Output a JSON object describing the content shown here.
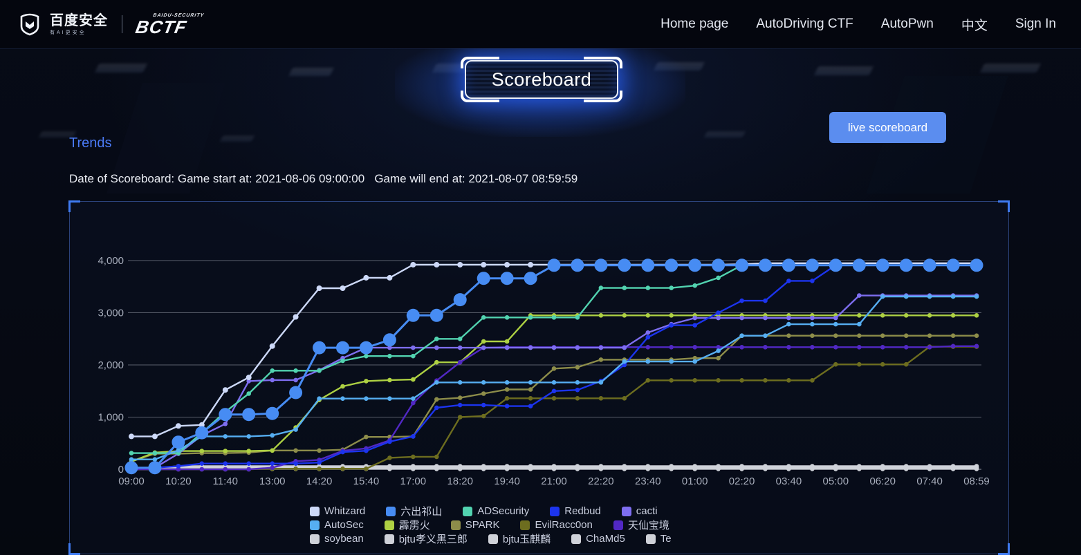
{
  "header": {
    "brand": {
      "logo_text": "百度安全",
      "logo_subtext": "有AI更安全",
      "ctf_logo_super": "BAIDU-SECURITY",
      "ctf_logo": "BCTF"
    },
    "nav": {
      "items": [
        {
          "label": "Home page"
        },
        {
          "label": "AutoDriving CTF"
        },
        {
          "label": "AutoPwn"
        },
        {
          "label": "中文"
        },
        {
          "label": "Sign In"
        }
      ]
    }
  },
  "page": {
    "title": "Scoreboard",
    "live_button": "live scoreboard",
    "section_heading": "Trends",
    "date_line": "Date of Scoreboard: Game start at: 2021-08-06 09:00:00   Game will end at: 2021-08-07 08:59:59"
  },
  "colors": {
    "accent": "#4a7af5",
    "button": "#5b8def",
    "panel_border": "#3b5fae",
    "corner_bracket": "#3f7bf2",
    "axis_text": "#a8aebc",
    "grid_line": "#c3c8d4",
    "legend_text": "#c9cede"
  },
  "chart_data": {
    "type": "line",
    "title": "Trends",
    "xlabel": "",
    "ylabel": "",
    "ylim": [
      0,
      4000
    ],
    "y_ticks": [
      0,
      1000,
      2000,
      3000,
      4000
    ],
    "y_tick_labels": [
      "0",
      "1,000",
      "2,000",
      "3,000",
      "4,000"
    ],
    "x_tick_labels": [
      "09:00",
      "10:20",
      "11:40",
      "13:00",
      "14:20",
      "15:40",
      "17:00",
      "18:20",
      "19:40",
      "21:00",
      "22:20",
      "23:40",
      "01:00",
      "02:20",
      "03:40",
      "05:00",
      "06:20",
      "07:40",
      "08:59"
    ],
    "minutes_per_point": 40,
    "points_per_tick": 2,
    "grid": "horizontal",
    "legend_position": "bottom",
    "legend_rows": 3,
    "draw_order": [
      10,
      11,
      12,
      13,
      14,
      8,
      7,
      6,
      9,
      4,
      2,
      3,
      5,
      0,
      1
    ],
    "series": [
      {
        "name": "Whitzard",
        "color": "#cdd9f8",
        "marker": "small",
        "values": [
          630,
          630,
          830,
          850,
          1520,
          1760,
          2360,
          2920,
          3470,
          3470,
          3670,
          3670,
          3920,
          3920,
          3920,
          3920,
          3920,
          3920,
          3920,
          3920,
          3920,
          3920,
          3920,
          3920,
          3920,
          3920,
          3930,
          3950,
          3950,
          3950,
          3950,
          3950,
          3950,
          3950,
          3950,
          3950,
          3950
        ]
      },
      {
        "name": "六出祁山",
        "color": "#478cf3",
        "marker": "big",
        "values": [
          30,
          30,
          520,
          700,
          1050,
          1050,
          1070,
          1470,
          2330,
          2330,
          2330,
          2480,
          2950,
          2950,
          3250,
          3660,
          3660,
          3660,
          3910,
          3910,
          3910,
          3910,
          3910,
          3910,
          3910,
          3910,
          3910,
          3910,
          3910,
          3910,
          3910,
          3910,
          3910,
          3910,
          3910,
          3910,
          3910
        ]
      },
      {
        "name": "ADSecurity",
        "color": "#52d3b0",
        "marker": "small",
        "values": [
          310,
          310,
          310,
          700,
          1100,
          1450,
          1890,
          1890,
          1890,
          2080,
          2170,
          2170,
          2170,
          2500,
          2500,
          2910,
          2910,
          2910,
          2910,
          2910,
          3475,
          3475,
          3475,
          3475,
          3520,
          3670,
          3910,
          3910,
          3910,
          3910,
          3910,
          3910,
          3910,
          3910,
          3910,
          3910,
          3910
        ]
      },
      {
        "name": "Redbud",
        "color": "#1c34ee",
        "marker": "small",
        "values": [
          30,
          30,
          60,
          110,
          110,
          110,
          110,
          110,
          130,
          330,
          355,
          530,
          630,
          1180,
          1230,
          1230,
          1210,
          1210,
          1500,
          1520,
          1690,
          2000,
          2530,
          2760,
          2760,
          3000,
          3230,
          3230,
          3610,
          3610,
          3910,
          3910,
          3910,
          3910,
          3910,
          3910,
          3910
        ]
      },
      {
        "name": "cacti",
        "color": "#7e6ef0",
        "marker": "small",
        "values": [
          30,
          30,
          300,
          650,
          870,
          1690,
          1710,
          1710,
          1900,
          2130,
          2330,
          2330,
          2330,
          2330,
          2330,
          2330,
          2330,
          2330,
          2330,
          2330,
          2330,
          2330,
          2620,
          2780,
          2900,
          2900,
          2900,
          2900,
          2900,
          2900,
          2900,
          3330,
          3330,
          3330,
          3330,
          3330,
          3330
        ]
      },
      {
        "name": "AutoSec",
        "color": "#56aef2",
        "marker": "small",
        "values": [
          190,
          190,
          365,
          630,
          630,
          630,
          650,
          760,
          1355,
          1355,
          1355,
          1355,
          1355,
          1665,
          1665,
          1665,
          1665,
          1665,
          1665,
          1665,
          1665,
          2065,
          2065,
          2065,
          2065,
          2270,
          2560,
          2560,
          2780,
          2780,
          2780,
          2780,
          3310,
          3310,
          3310,
          3310,
          3310
        ]
      },
      {
        "name": "霹雳火",
        "color": "#aed143",
        "marker": "small",
        "values": [
          150,
          320,
          350,
          350,
          350,
          350,
          360,
          800,
          1330,
          1590,
          1690,
          1710,
          1720,
          2050,
          2050,
          2450,
          2450,
          2950,
          2950,
          2950,
          2950,
          2950,
          2950,
          2950,
          2950,
          2950,
          2950,
          2950,
          2950,
          2950,
          2950,
          2950,
          2950,
          2950,
          2950,
          2950,
          2950
        ]
      },
      {
        "name": "SPARK",
        "color": "#8d8d4a",
        "marker": "small",
        "values": [
          150,
          300,
          300,
          310,
          310,
          320,
          360,
          360,
          360,
          375,
          620,
          620,
          630,
          1340,
          1370,
          1450,
          1530,
          1530,
          1930,
          1955,
          2100,
          2100,
          2100,
          2100,
          2130,
          2130,
          2560,
          2560,
          2560,
          2560,
          2560,
          2560,
          2560,
          2560,
          2560,
          2560,
          2560
        ]
      },
      {
        "name": "EvilRacc0on",
        "color": "#6d6d1f",
        "marker": "small",
        "values": [
          0,
          0,
          0,
          0,
          0,
          0,
          10,
          10,
          10,
          10,
          10,
          220,
          240,
          240,
          1000,
          1020,
          1360,
          1360,
          1360,
          1360,
          1360,
          1360,
          1705,
          1705,
          1705,
          1705,
          1705,
          1705,
          1705,
          1705,
          2010,
          2010,
          2010,
          2010,
          2350,
          2350,
          2350
        ]
      },
      {
        "name": "天仙宝境",
        "color": "#5128c4",
        "marker": "small",
        "values": [
          0,
          0,
          0,
          0,
          0,
          0,
          30,
          155,
          180,
          355,
          400,
          555,
          1270,
          1700,
          2050,
          2330,
          2340,
          2340,
          2340,
          2340,
          2340,
          2340,
          2340,
          2340,
          2340,
          2340,
          2340,
          2340,
          2340,
          2340,
          2340,
          2340,
          2340,
          2340,
          2340,
          2360,
          2360
        ]
      },
      {
        "name": "soybean",
        "color": "#cfd2d9",
        "marker": "small",
        "values": [
          20,
          20,
          60,
          60,
          60,
          60,
          60,
          60,
          60,
          60,
          60,
          60,
          60,
          60,
          60,
          60,
          60,
          60,
          60,
          60,
          60,
          60,
          60,
          60,
          60,
          60,
          60,
          60,
          60,
          60,
          60,
          60,
          60,
          60,
          60,
          60,
          60
        ]
      },
      {
        "name": "bjtu孝义黑三郎",
        "color": "#cfd2d9",
        "marker": "small",
        "values": [
          10,
          10,
          40,
          40,
          40,
          40,
          40,
          40,
          40,
          40,
          40,
          40,
          40,
          40,
          40,
          40,
          40,
          40,
          40,
          40,
          40,
          40,
          40,
          40,
          40,
          40,
          40,
          40,
          40,
          40,
          40,
          40,
          40,
          40,
          40,
          40,
          40
        ]
      },
      {
        "name": "bjtu玉麒麟",
        "color": "#cfd2d9",
        "marker": "small",
        "values": [
          5,
          5,
          25,
          25,
          25,
          25,
          25,
          25,
          25,
          25,
          25,
          25,
          25,
          25,
          25,
          25,
          25,
          25,
          25,
          25,
          25,
          25,
          25,
          25,
          25,
          25,
          25,
          25,
          25,
          25,
          25,
          25,
          25,
          25,
          25,
          25,
          25
        ]
      },
      {
        "name": "ChaMd5",
        "color": "#cfd2d9",
        "marker": "small",
        "values": [
          5,
          5,
          15,
          15,
          15,
          15,
          15,
          15,
          15,
          15,
          15,
          15,
          15,
          15,
          15,
          15,
          15,
          15,
          15,
          15,
          15,
          15,
          15,
          15,
          15,
          15,
          15,
          15,
          15,
          15,
          15,
          15,
          15,
          15,
          15,
          15,
          15
        ]
      },
      {
        "name": "Te",
        "color": "#cfd2d9",
        "marker": "small",
        "values": [
          0,
          0,
          8,
          8,
          8,
          8,
          8,
          8,
          8,
          8,
          8,
          8,
          8,
          8,
          8,
          8,
          8,
          8,
          8,
          8,
          8,
          8,
          8,
          8,
          8,
          8,
          8,
          8,
          8,
          8,
          8,
          8,
          8,
          8,
          8,
          8,
          8
        ]
      }
    ]
  }
}
